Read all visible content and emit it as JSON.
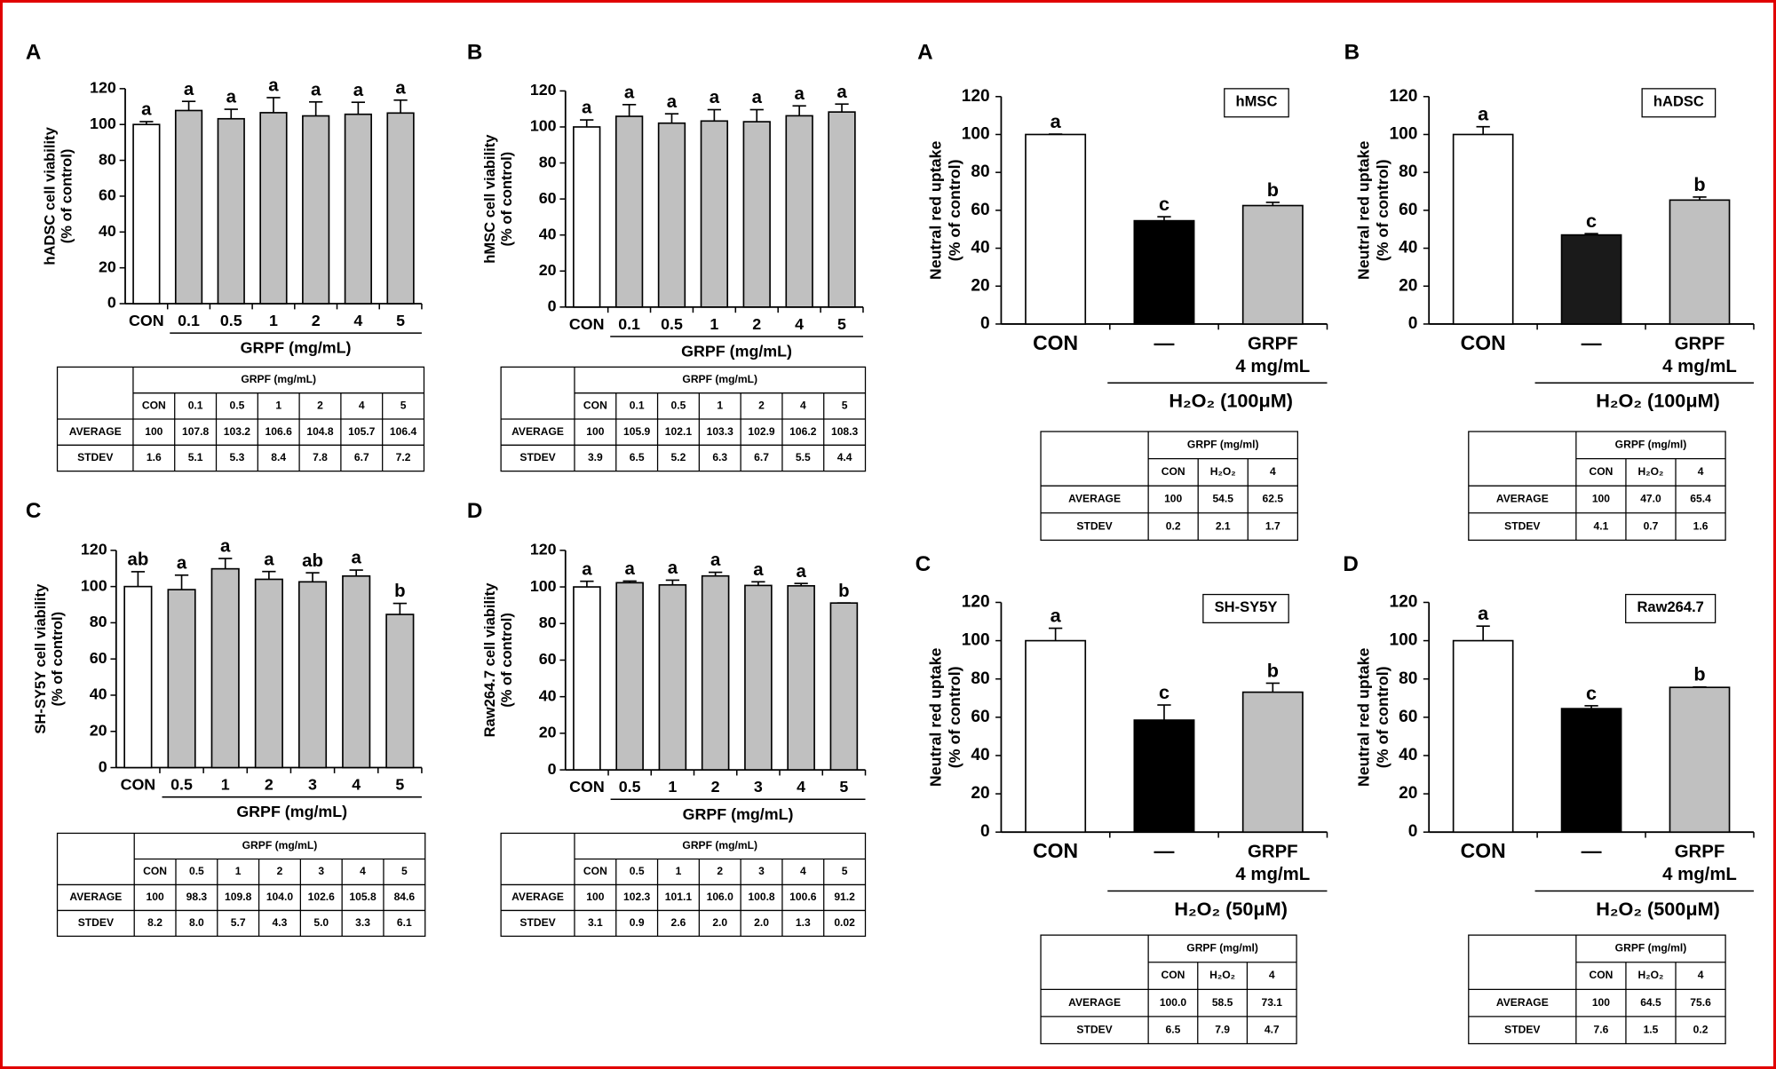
{
  "chart_data": [
    {
      "type": "bar",
      "panel": "A",
      "ylabel": [
        "hADSC cell viability",
        "(% of control)"
      ],
      "categories": [
        "CON",
        "0.1",
        "0.5",
        "1",
        "2",
        "4",
        "5"
      ],
      "values": [
        100,
        107.8,
        103.2,
        106.6,
        104.8,
        105.7,
        106.4
      ],
      "value_labels": [
        "100",
        "107.8",
        "103.2",
        "106.6",
        "104.8",
        "105.7",
        "106.4"
      ],
      "errors": [
        1.6,
        5.1,
        5.3,
        8.4,
        7.8,
        6.7,
        7.2
      ],
      "error_labels": [
        "1.6",
        "5.1",
        "5.3",
        "8.4",
        "7.8",
        "6.7",
        "7.2"
      ],
      "letters": [
        "a",
        "a",
        "a",
        "a",
        "a",
        "a",
        "a"
      ],
      "bar_colors": [
        "#ffffff",
        "#c0c0c0",
        "#c0c0c0",
        "#c0c0c0",
        "#c0c0c0",
        "#c0c0c0",
        "#c0c0c0"
      ],
      "group_label": "GRPF (mg/mL)",
      "ylim": [
        0,
        120
      ],
      "yticks": [
        0,
        20,
        40,
        60,
        80,
        100,
        120
      ],
      "table": {
        "header": "GRPF (mg/mL)",
        "columns": [
          "CON",
          "0.1",
          "0.5",
          "1",
          "2",
          "4",
          "5"
        ],
        "rows": [
          "AVERAGE",
          "STDEV"
        ]
      }
    },
    {
      "type": "bar",
      "panel": "B",
      "ylabel": [
        "hMSC cell viability",
        "(% of control)"
      ],
      "categories": [
        "CON",
        "0.1",
        "0.5",
        "1",
        "2",
        "4",
        "5"
      ],
      "values": [
        100,
        105.9,
        102.1,
        103.3,
        102.9,
        106.2,
        108.3
      ],
      "value_labels": [
        "100",
        "105.9",
        "102.1",
        "103.3",
        "102.9",
        "106.2",
        "108.3"
      ],
      "errors": [
        3.9,
        6.5,
        5.2,
        6.3,
        6.7,
        5.5,
        4.4
      ],
      "error_labels": [
        "3.9",
        "6.5",
        "5.2",
        "6.3",
        "6.7",
        "5.5",
        "4.4"
      ],
      "letters": [
        "a",
        "a",
        "a",
        "a",
        "a",
        "a",
        "a"
      ],
      "bar_colors": [
        "#ffffff",
        "#c0c0c0",
        "#c0c0c0",
        "#c0c0c0",
        "#c0c0c0",
        "#c0c0c0",
        "#c0c0c0"
      ],
      "group_label": "GRPF (mg/mL)",
      "ylim": [
        0,
        120
      ],
      "yticks": [
        0,
        20,
        40,
        60,
        80,
        100,
        120
      ],
      "table": {
        "header": "GRPF (mg/mL)",
        "columns": [
          "CON",
          "0.1",
          "0.5",
          "1",
          "2",
          "4",
          "5"
        ],
        "rows": [
          "AVERAGE",
          "STDEV"
        ]
      }
    },
    {
      "type": "bar",
      "panel": "C",
      "ylabel": [
        "SH-SY5Y cell viability",
        "(% of control)"
      ],
      "categories": [
        "CON",
        "0.5",
        "1",
        "2",
        "3",
        "4",
        "5"
      ],
      "values": [
        100,
        98.3,
        109.8,
        104.0,
        102.6,
        105.8,
        84.6
      ],
      "value_labels": [
        "100",
        "98.3",
        "109.8",
        "104.0",
        "102.6",
        "105.8",
        "84.6"
      ],
      "errors": [
        8.2,
        8.0,
        5.7,
        4.3,
        5.0,
        3.3,
        6.1
      ],
      "error_labels": [
        "8.2",
        "8.0",
        "5.7",
        "4.3",
        "5.0",
        "3.3",
        "6.1"
      ],
      "letters": [
        "ab",
        "a",
        "a",
        "a",
        "ab",
        "a",
        "b"
      ],
      "bar_colors": [
        "#ffffff",
        "#c0c0c0",
        "#c0c0c0",
        "#c0c0c0",
        "#c0c0c0",
        "#c0c0c0",
        "#c0c0c0"
      ],
      "group_label": "GRPF (mg/mL)",
      "ylim": [
        0,
        120
      ],
      "yticks": [
        0,
        20,
        40,
        60,
        80,
        100,
        120
      ],
      "table": {
        "header": "GRPF (mg/mL)",
        "columns": [
          "CON",
          "0.5",
          "1",
          "2",
          "3",
          "4",
          "5"
        ],
        "rows": [
          "AVERAGE",
          "STDEV"
        ]
      }
    },
    {
      "type": "bar",
      "panel": "D",
      "ylabel": [
        "Raw264.7 cell viability",
        "(% of control)"
      ],
      "categories": [
        "CON",
        "0.5",
        "1",
        "2",
        "3",
        "4",
        "5"
      ],
      "values": [
        100,
        102.3,
        101.1,
        106.0,
        100.8,
        100.6,
        91.2
      ],
      "value_labels": [
        "100",
        "102.3",
        "101.1",
        "106.0",
        "100.8",
        "100.6",
        "91.2"
      ],
      "errors": [
        3.1,
        0.9,
        2.6,
        2.0,
        2.0,
        1.3,
        0.02
      ],
      "error_labels": [
        "3.1",
        "0.9",
        "2.6",
        "2.0",
        "2.0",
        "1.3",
        "0.02"
      ],
      "letters": [
        "a",
        "a",
        "a",
        "a",
        "a",
        "a",
        "b"
      ],
      "bar_colors": [
        "#ffffff",
        "#c0c0c0",
        "#c0c0c0",
        "#c0c0c0",
        "#c0c0c0",
        "#c0c0c0",
        "#c0c0c0"
      ],
      "group_label": "GRPF (mg/mL)",
      "ylim": [
        0,
        120
      ],
      "yticks": [
        0,
        20,
        40,
        60,
        80,
        100,
        120
      ],
      "table": {
        "header": "GRPF (mg/mL)",
        "columns": [
          "CON",
          "0.5",
          "1",
          "2",
          "3",
          "4",
          "5"
        ],
        "rows": [
          "AVERAGE",
          "STDEV"
        ]
      }
    },
    {
      "type": "bar",
      "panel": "A",
      "ylabel": [
        "Neutral red uptake",
        "(% of control)"
      ],
      "cell_line": "hMSC",
      "categories": [
        "CON",
        "—",
        [
          "GRPF",
          "4 mg/mL"
        ]
      ],
      "values": [
        100,
        54.5,
        62.5
      ],
      "value_labels": [
        "100",
        "54.5",
        "62.5"
      ],
      "errors": [
        0.2,
        2.1,
        1.7
      ],
      "error_labels": [
        "0.2",
        "2.1",
        "1.7"
      ],
      "letters": [
        "a",
        "c",
        "b"
      ],
      "bar_colors": [
        "#ffffff",
        "#000000",
        "#c0c0c0"
      ],
      "group_label": "H₂O₂ (100μM)",
      "ylim": [
        0,
        120
      ],
      "yticks": [
        0,
        20,
        40,
        60,
        80,
        100,
        120
      ],
      "table": {
        "header": "GRPF (mg/ml)",
        "columns": [
          "CON",
          "H₂O₂",
          "4"
        ],
        "rows": [
          "AVERAGE",
          "STDEV"
        ]
      }
    },
    {
      "type": "bar",
      "panel": "B",
      "ylabel": [
        "Neutral red uptake",
        "(% of control)"
      ],
      "cell_line": "hADSC",
      "categories": [
        "CON",
        "—",
        [
          "GRPF",
          "4 mg/mL"
        ]
      ],
      "values": [
        100,
        47.0,
        65.4
      ],
      "value_labels": [
        "100",
        "47.0",
        "65.4"
      ],
      "errors": [
        4.1,
        0.7,
        1.6
      ],
      "error_labels": [
        "4.1",
        "0.7",
        "1.6"
      ],
      "letters": [
        "a",
        "c",
        "b"
      ],
      "bar_colors": [
        "#ffffff",
        "#1a1a1a",
        "#c0c0c0"
      ],
      "group_label": "H₂O₂ (100μM)",
      "ylim": [
        0,
        120
      ],
      "yticks": [
        0,
        20,
        40,
        60,
        80,
        100,
        120
      ],
      "table": {
        "header": "GRPF (mg/ml)",
        "columns": [
          "CON",
          "H₂O₂",
          "4"
        ],
        "rows": [
          "AVERAGE",
          "STDEV"
        ]
      }
    },
    {
      "type": "bar",
      "panel": "C",
      "ylabel": [
        "Neutral red uptake",
        "(% of control)"
      ],
      "cell_line": "SH-SY5Y",
      "categories": [
        "CON",
        "—",
        [
          "GRPF",
          "4 mg/mL"
        ]
      ],
      "values": [
        100,
        58.5,
        73.1
      ],
      "value_labels": [
        "100.0",
        "58.5",
        "73.1"
      ],
      "errors": [
        6.5,
        7.9,
        4.7
      ],
      "error_labels": [
        "6.5",
        "7.9",
        "4.7"
      ],
      "letters": [
        "a",
        "c",
        "b"
      ],
      "bar_colors": [
        "#ffffff",
        "#000000",
        "#c0c0c0"
      ],
      "group_label": "H₂O₂ (50μM)",
      "ylim": [
        0,
        120
      ],
      "yticks": [
        0,
        20,
        40,
        60,
        80,
        100,
        120
      ],
      "table": {
        "header": "GRPF (mg/ml)",
        "columns": [
          "CON",
          "H₂O₂",
          "4"
        ],
        "rows": [
          "AVERAGE",
          "STDEV"
        ]
      }
    },
    {
      "type": "bar",
      "panel": "D",
      "ylabel": [
        "Neutral red uptake",
        "(% of control)"
      ],
      "cell_line": "Raw264.7",
      "categories": [
        "CON",
        "—",
        [
          "GRPF",
          "4 mg/mL"
        ]
      ],
      "values": [
        100,
        64.5,
        75.6
      ],
      "value_labels": [
        "100",
        "64.5",
        "75.6"
      ],
      "errors": [
        7.6,
        1.5,
        0.2
      ],
      "error_labels": [
        "7.6",
        "1.5",
        "0.2"
      ],
      "letters": [
        "a",
        "c",
        "b"
      ],
      "bar_colors": [
        "#ffffff",
        "#000000",
        "#c0c0c0"
      ],
      "group_label": "H₂O₂ (500μM)",
      "ylim": [
        0,
        120
      ],
      "yticks": [
        0,
        20,
        40,
        60,
        80,
        100,
        120
      ],
      "table": {
        "header": "GRPF (mg/ml)",
        "columns": [
          "CON",
          "H₂O₂",
          "4"
        ],
        "rows": [
          "AVERAGE",
          "STDEV"
        ]
      }
    }
  ]
}
